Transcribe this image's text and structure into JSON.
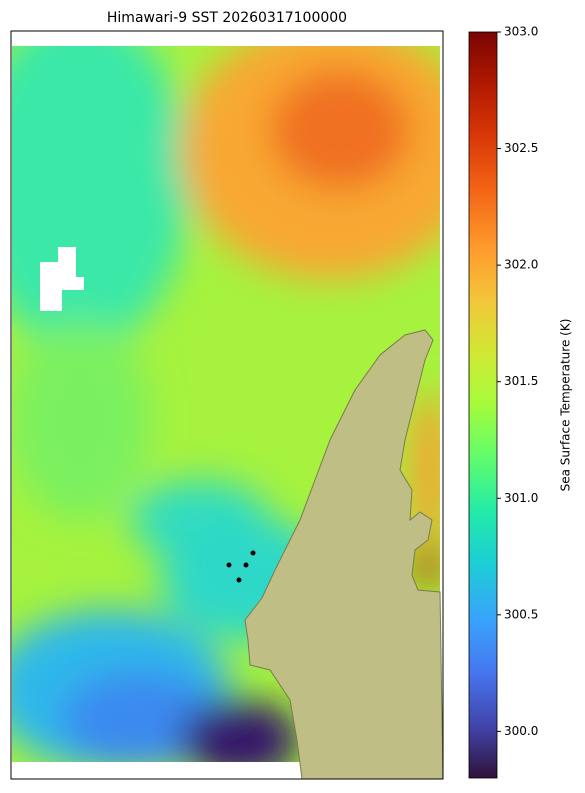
{
  "chart_data": {
    "type": "map",
    "title": "Himawari-9 SST 20260317100000",
    "colorbar": {
      "label": "Sea Surface Temperature (K)",
      "lim": [
        299.8,
        303.0
      ],
      "ticks": [
        {
          "value": 300,
          "label": "300.0"
        },
        300.5,
        {
          "value": 301,
          "label": "301.0"
        },
        301.5,
        {
          "value": 302,
          "label": "302.0"
        },
        302.5,
        {
          "value": 303,
          "label": "303.0"
        }
      ]
    }
  }
}
